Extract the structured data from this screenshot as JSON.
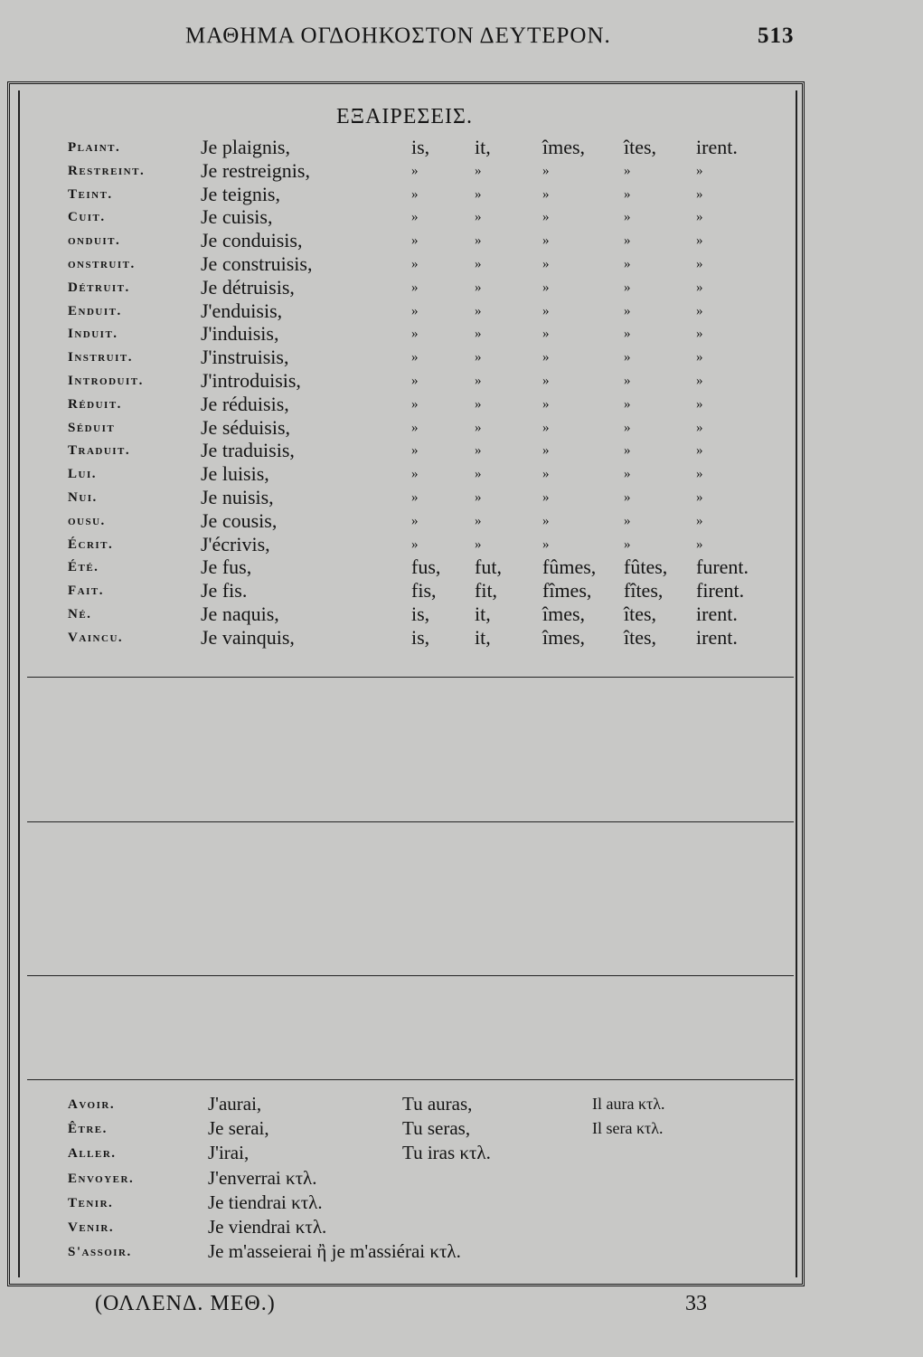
{
  "header": {
    "running_title": "ΜΑΘΗΜΑ ΟΓΔΟΗΚΟΣΤΟΝ ΔΕΥΤΕΡΟΝ.",
    "page_number": "513"
  },
  "section_title": "ΕΞΑΙΡΕΣΕΙΣ.",
  "exceptions": [
    {
      "label": "Plaint.",
      "form": "Je plaignis,",
      "endings": [
        "is,",
        "it,",
        "îmes,",
        "îtes,",
        "irent."
      ]
    },
    {
      "label": "Restreint.",
      "form": "Je restreignis,",
      "endings": [
        "»",
        "»",
        "»",
        "»",
        "»"
      ]
    },
    {
      "label": "Teint.",
      "form": "Je teignis,",
      "endings": [
        "»",
        "»",
        "»",
        "»",
        "»"
      ]
    },
    {
      "label": "Cuit.",
      "form": "Je cuisis,",
      "endings": [
        "»",
        "»",
        "»",
        "»",
        "»"
      ]
    },
    {
      "label": "onduit.",
      "form": "Je conduisis,",
      "endings": [
        "»",
        "»",
        "»",
        "»",
        "»"
      ]
    },
    {
      "label": "onstruit.",
      "form": "Je construisis,",
      "endings": [
        "»",
        "»",
        "»",
        "»",
        "»"
      ]
    },
    {
      "label": "Détruit.",
      "form": "Je détruisis,",
      "endings": [
        "»",
        "»",
        "»",
        "»",
        "»"
      ]
    },
    {
      "label": "Enduit.",
      "form": "J'enduisis,",
      "endings": [
        "»",
        "»",
        "»",
        "»",
        "»"
      ]
    },
    {
      "label": "Induit.",
      "form": "J'induisis,",
      "endings": [
        "»",
        "»",
        "»",
        "»",
        "»"
      ]
    },
    {
      "label": "Instruit.",
      "form": "J'instruisis,",
      "endings": [
        "»",
        "»",
        "»",
        "»",
        "»"
      ]
    },
    {
      "label": "Introduit.",
      "form": "J'introduisis,",
      "endings": [
        "»",
        "»",
        "»",
        "»",
        "»"
      ]
    },
    {
      "label": "Réduit.",
      "form": "Je réduisis,",
      "endings": [
        "»",
        "»",
        "»",
        "»",
        "»"
      ]
    },
    {
      "label": "Séduit",
      "form": "Je séduisis,",
      "endings": [
        "»",
        "»",
        "»",
        "»",
        "»"
      ]
    },
    {
      "label": "Traduit.",
      "form": "Je traduisis,",
      "endings": [
        "»",
        "»",
        "»",
        "»",
        "»"
      ]
    },
    {
      "label": "Lui.",
      "form": "Je luisis,",
      "endings": [
        "»",
        "»",
        "»",
        "»",
        "»"
      ]
    },
    {
      "label": "Nui.",
      "form": "Je nuisis,",
      "endings": [
        "»",
        "»",
        "»",
        "»",
        "»"
      ]
    },
    {
      "label": "ousu.",
      "form": "Je cousis,",
      "endings": [
        "»",
        "»",
        "»",
        "»",
        "»"
      ]
    },
    {
      "label": "Écrit.",
      "form": "J'écrivis,",
      "endings": [
        "»",
        "»",
        "»",
        "»",
        "»"
      ]
    },
    {
      "label": "Été.",
      "form": "Je fus,",
      "endings": [
        "fus,",
        "fut,",
        "fûmes,",
        "fûtes,",
        "furent."
      ]
    },
    {
      "label": "Fait.",
      "form": "Je fis.",
      "endings": [
        "fis,",
        "fit,",
        "fîmes,",
        "fîtes,",
        "firent."
      ]
    },
    {
      "label": "Né.",
      "form": "Je naquis,",
      "endings": [
        "is,",
        "it,",
        "îmes,",
        "îtes,",
        "irent."
      ]
    },
    {
      "label": "Vaincu.",
      "form": "Je vainquis,",
      "endings": [
        "is,",
        "it,",
        "îmes,",
        "îtes,",
        "irent."
      ]
    }
  ],
  "futures": [
    {
      "label": "Avoir.",
      "cols": [
        "J'aurai,",
        "Tu auras,",
        "Il aura κτλ."
      ]
    },
    {
      "label": "Être.",
      "cols": [
        "Je serai,",
        "Tu seras,",
        "Il sera κτλ."
      ]
    },
    {
      "label": "Aller.",
      "cols": [
        "J'irai,",
        "Tu iras κτλ.",
        ""
      ]
    },
    {
      "label": "Envoyer.",
      "cols": [
        "J'enverrai κτλ.",
        "",
        ""
      ]
    },
    {
      "label": "Tenir.",
      "cols": [
        "Je tiendrai κτλ.",
        "",
        ""
      ]
    },
    {
      "label": "Venir.",
      "cols": [
        "Je viendrai κτλ.",
        "",
        ""
      ]
    },
    {
      "label": "S'assoir.",
      "cols": [
        "Je m'asseierai ἢ je m'assiérai κτλ.",
        "",
        ""
      ]
    }
  ],
  "footer": {
    "signature": "(ΟΛΛΕΝΔ. ΜΕΘ.)",
    "sheet_number": "33"
  }
}
